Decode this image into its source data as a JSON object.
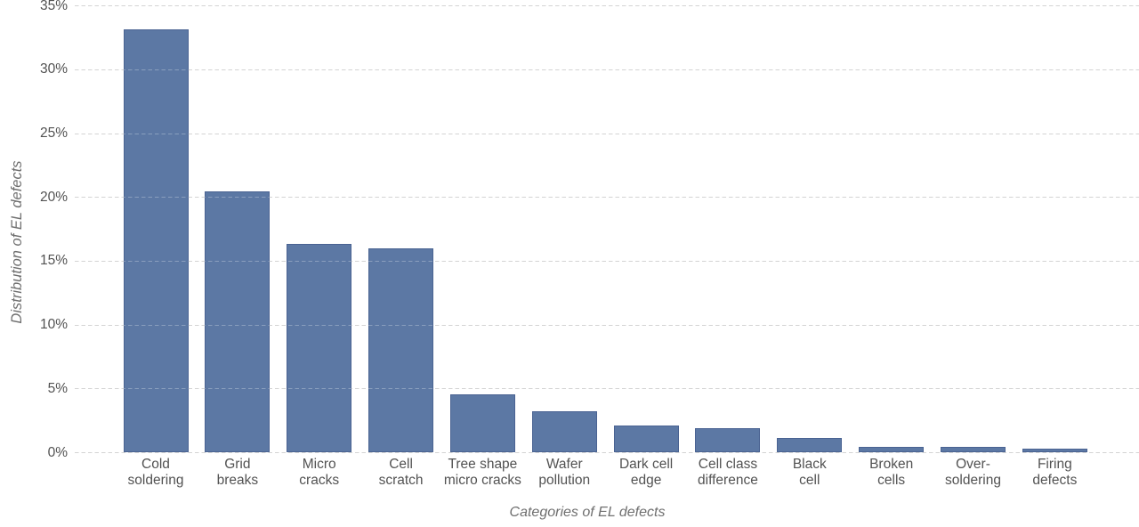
{
  "chart_data": {
    "type": "bar",
    "title": "",
    "xlabel": "Categories of EL defects",
    "ylabel": "Distribution of EL defects",
    "categories": [
      "Cold soldering",
      "Grid breaks",
      "Micro cracks",
      "Cell scratch",
      "Tree shape micro cracks",
      "Wafer pollution",
      "Dark cell edge",
      "Cell class difference",
      "Black cell",
      "Broken cells",
      "Over-soldering",
      "Firing defects"
    ],
    "x_tick_labels": [
      "Cold\nsoldering",
      "Grid\nbreaks",
      "Micro\ncracks",
      "Cell\nscratch",
      "Tree shape\nmicro cracks",
      "Wafer\npollution",
      "Dark cell\nedge",
      "Cell class\ndifference",
      "Black\ncell",
      "Broken\ncells",
      "Over-\nsoldering",
      "Firing\ndefects"
    ],
    "values": [
      33.1,
      20.4,
      16.3,
      16.0,
      4.5,
      3.2,
      2.1,
      1.9,
      1.1,
      0.45,
      0.4,
      0.3
    ],
    "unit": "%",
    "y_ticks": [
      0,
      5,
      10,
      15,
      20,
      25,
      30,
      35
    ],
    "y_tick_labels": [
      "0%",
      "5%",
      "10%",
      "15%",
      "20%",
      "25%",
      "30%",
      "35%"
    ],
    "ylim": [
      0,
      35
    ],
    "grid": "horizontal-dashed",
    "legend": "none",
    "colors": {
      "bar_fill": "#5C78A4",
      "bar_edge": "#4A6392",
      "gridline": "#c3c3c3",
      "tick_text": "#525252",
      "axis_title_text": "#6f6f6f",
      "background": "#ffffff"
    }
  }
}
